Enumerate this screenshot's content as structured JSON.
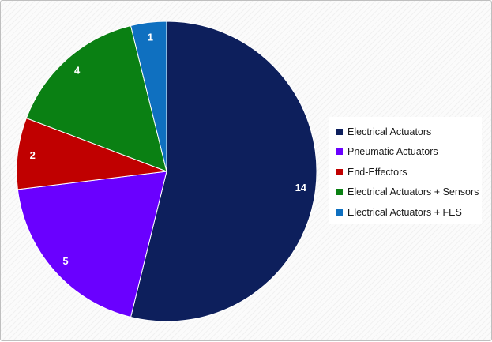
{
  "chart_data": {
    "type": "pie",
    "title": "",
    "categories": [
      "Electrical Actuators",
      "Pneumatic Actuators",
      "End-Effectors",
      "Electrical Actuators + Sensors",
      "Electrical Actuators + FES"
    ],
    "values": [
      14,
      5,
      2,
      4,
      1
    ],
    "data_labels": [
      "14",
      "5",
      "2",
      "4",
      "1"
    ],
    "colors": [
      "#0d1f5c",
      "#6a00ff",
      "#c00000",
      "#0a8013",
      "#0f70c0"
    ],
    "start_angle_deg": 0,
    "direction": "clockwise",
    "legend": "right"
  }
}
